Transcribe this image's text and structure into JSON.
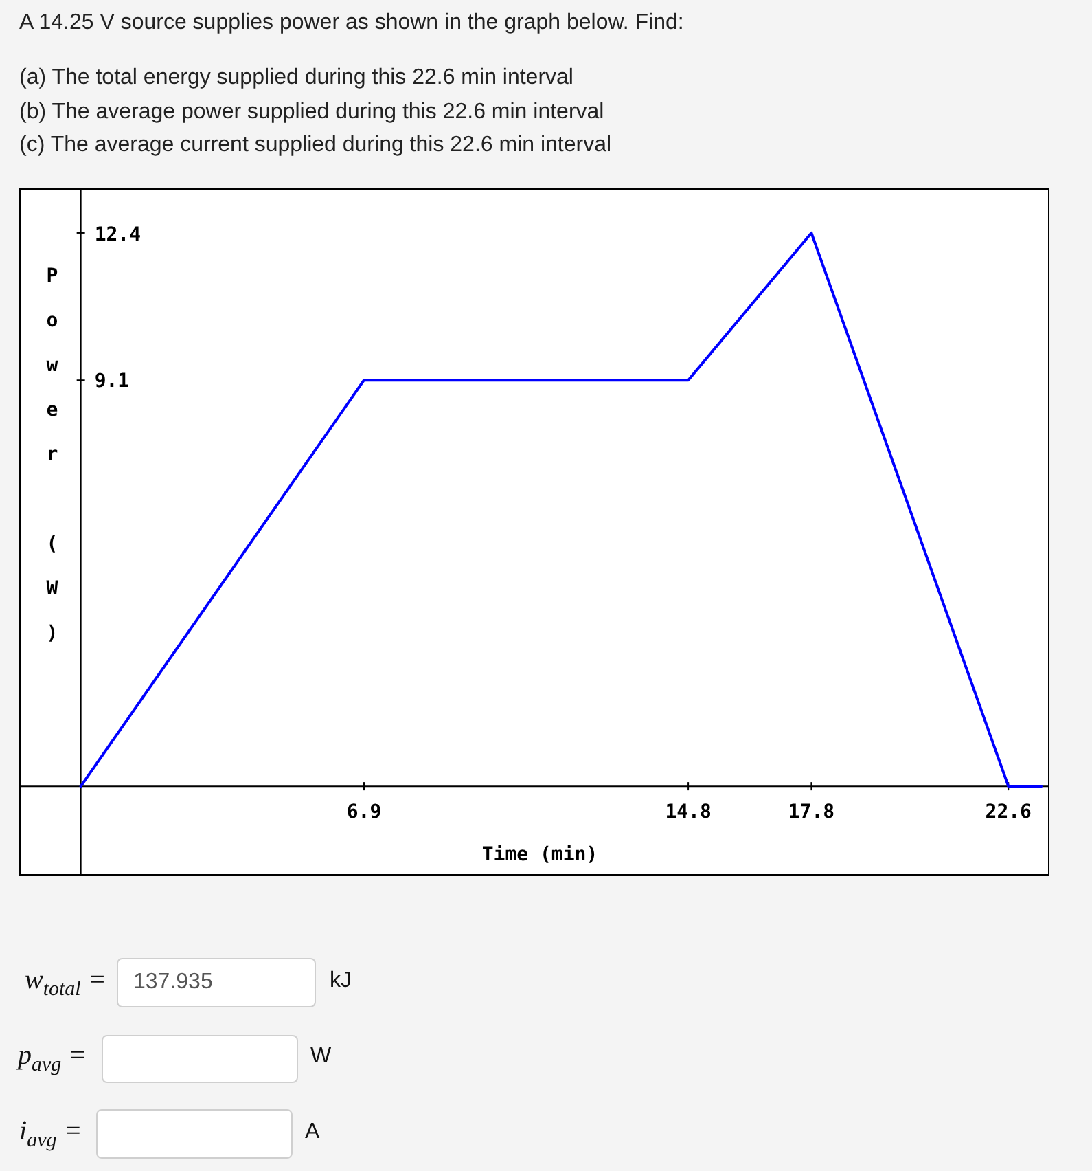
{
  "chart_data": {
    "type": "line",
    "title": "A 14.25 V source supplies power as shown in the graph below. Find:",
    "subtitle": "(a) The total energy supplied during this 22.6 min interval\n(b) The average power supplied during this 22.6 min interval\n(c) The average current supplied during this 22.6 min interval",
    "xlabel": "Time (min)",
    "ylabel": "Power (W)",
    "x": [
      0,
      6.9,
      14.8,
      17.8,
      22.6,
      23.4
    ],
    "series": [
      {
        "color": "#0000ff",
        "values": [
          0,
          9.1,
          9.1,
          12.4,
          0,
          0
        ]
      }
    ],
    "xlim": [
      -1.5,
      23.6
    ],
    "ylim": [
      -2,
      13.4
    ],
    "xticks": [
      6.9,
      14.8,
      17.8,
      22.6
    ],
    "yticks": [
      9.1,
      12.4
    ],
    "annotations": [
      "w$_{total}$ =",
      "137.935",
      "kJ",
      "p$_{avg}$ =",
      "W",
      "i$_{avg}$ =",
      "A"
    ]
  }
}
